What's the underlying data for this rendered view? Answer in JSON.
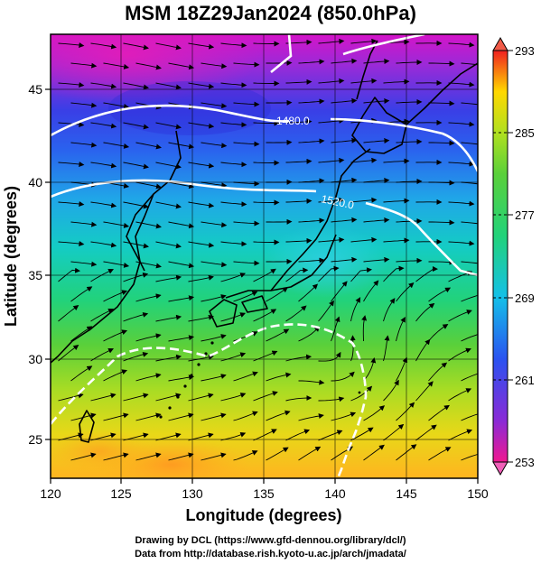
{
  "title": "MSM 18Z29Jan2024 (850.0hPa)",
  "axes": {
    "xlabel": "Longitude (degrees)",
    "ylabel": "Latitude  (degrees)",
    "x_ticks": [
      "120",
      "125",
      "130",
      "135",
      "140",
      "145",
      "150"
    ],
    "y_ticks": [
      "25",
      "30",
      "35",
      "40",
      "45"
    ]
  },
  "colorbar": {
    "ticks": [
      "293",
      "285",
      "277",
      "269",
      "261",
      "253"
    ],
    "min": 253,
    "max": 293,
    "colors": [
      "#f01890",
      "#8a2ad6",
      "#2a52f0",
      "#14c0e8",
      "#22d27a",
      "#5ad03a",
      "#b0e020",
      "#ffd800",
      "#ff7a10",
      "#f02020"
    ]
  },
  "contours": [
    {
      "label": "1480.0"
    },
    {
      "label": "1520.0"
    }
  ],
  "credits": {
    "line1": "Drawing by DCL (https://www.gfd-dennou.org/library/dcl/)",
    "line2": "Data from http://database.rish.kyoto-u.ac.jp/arch/jmadata/"
  }
}
